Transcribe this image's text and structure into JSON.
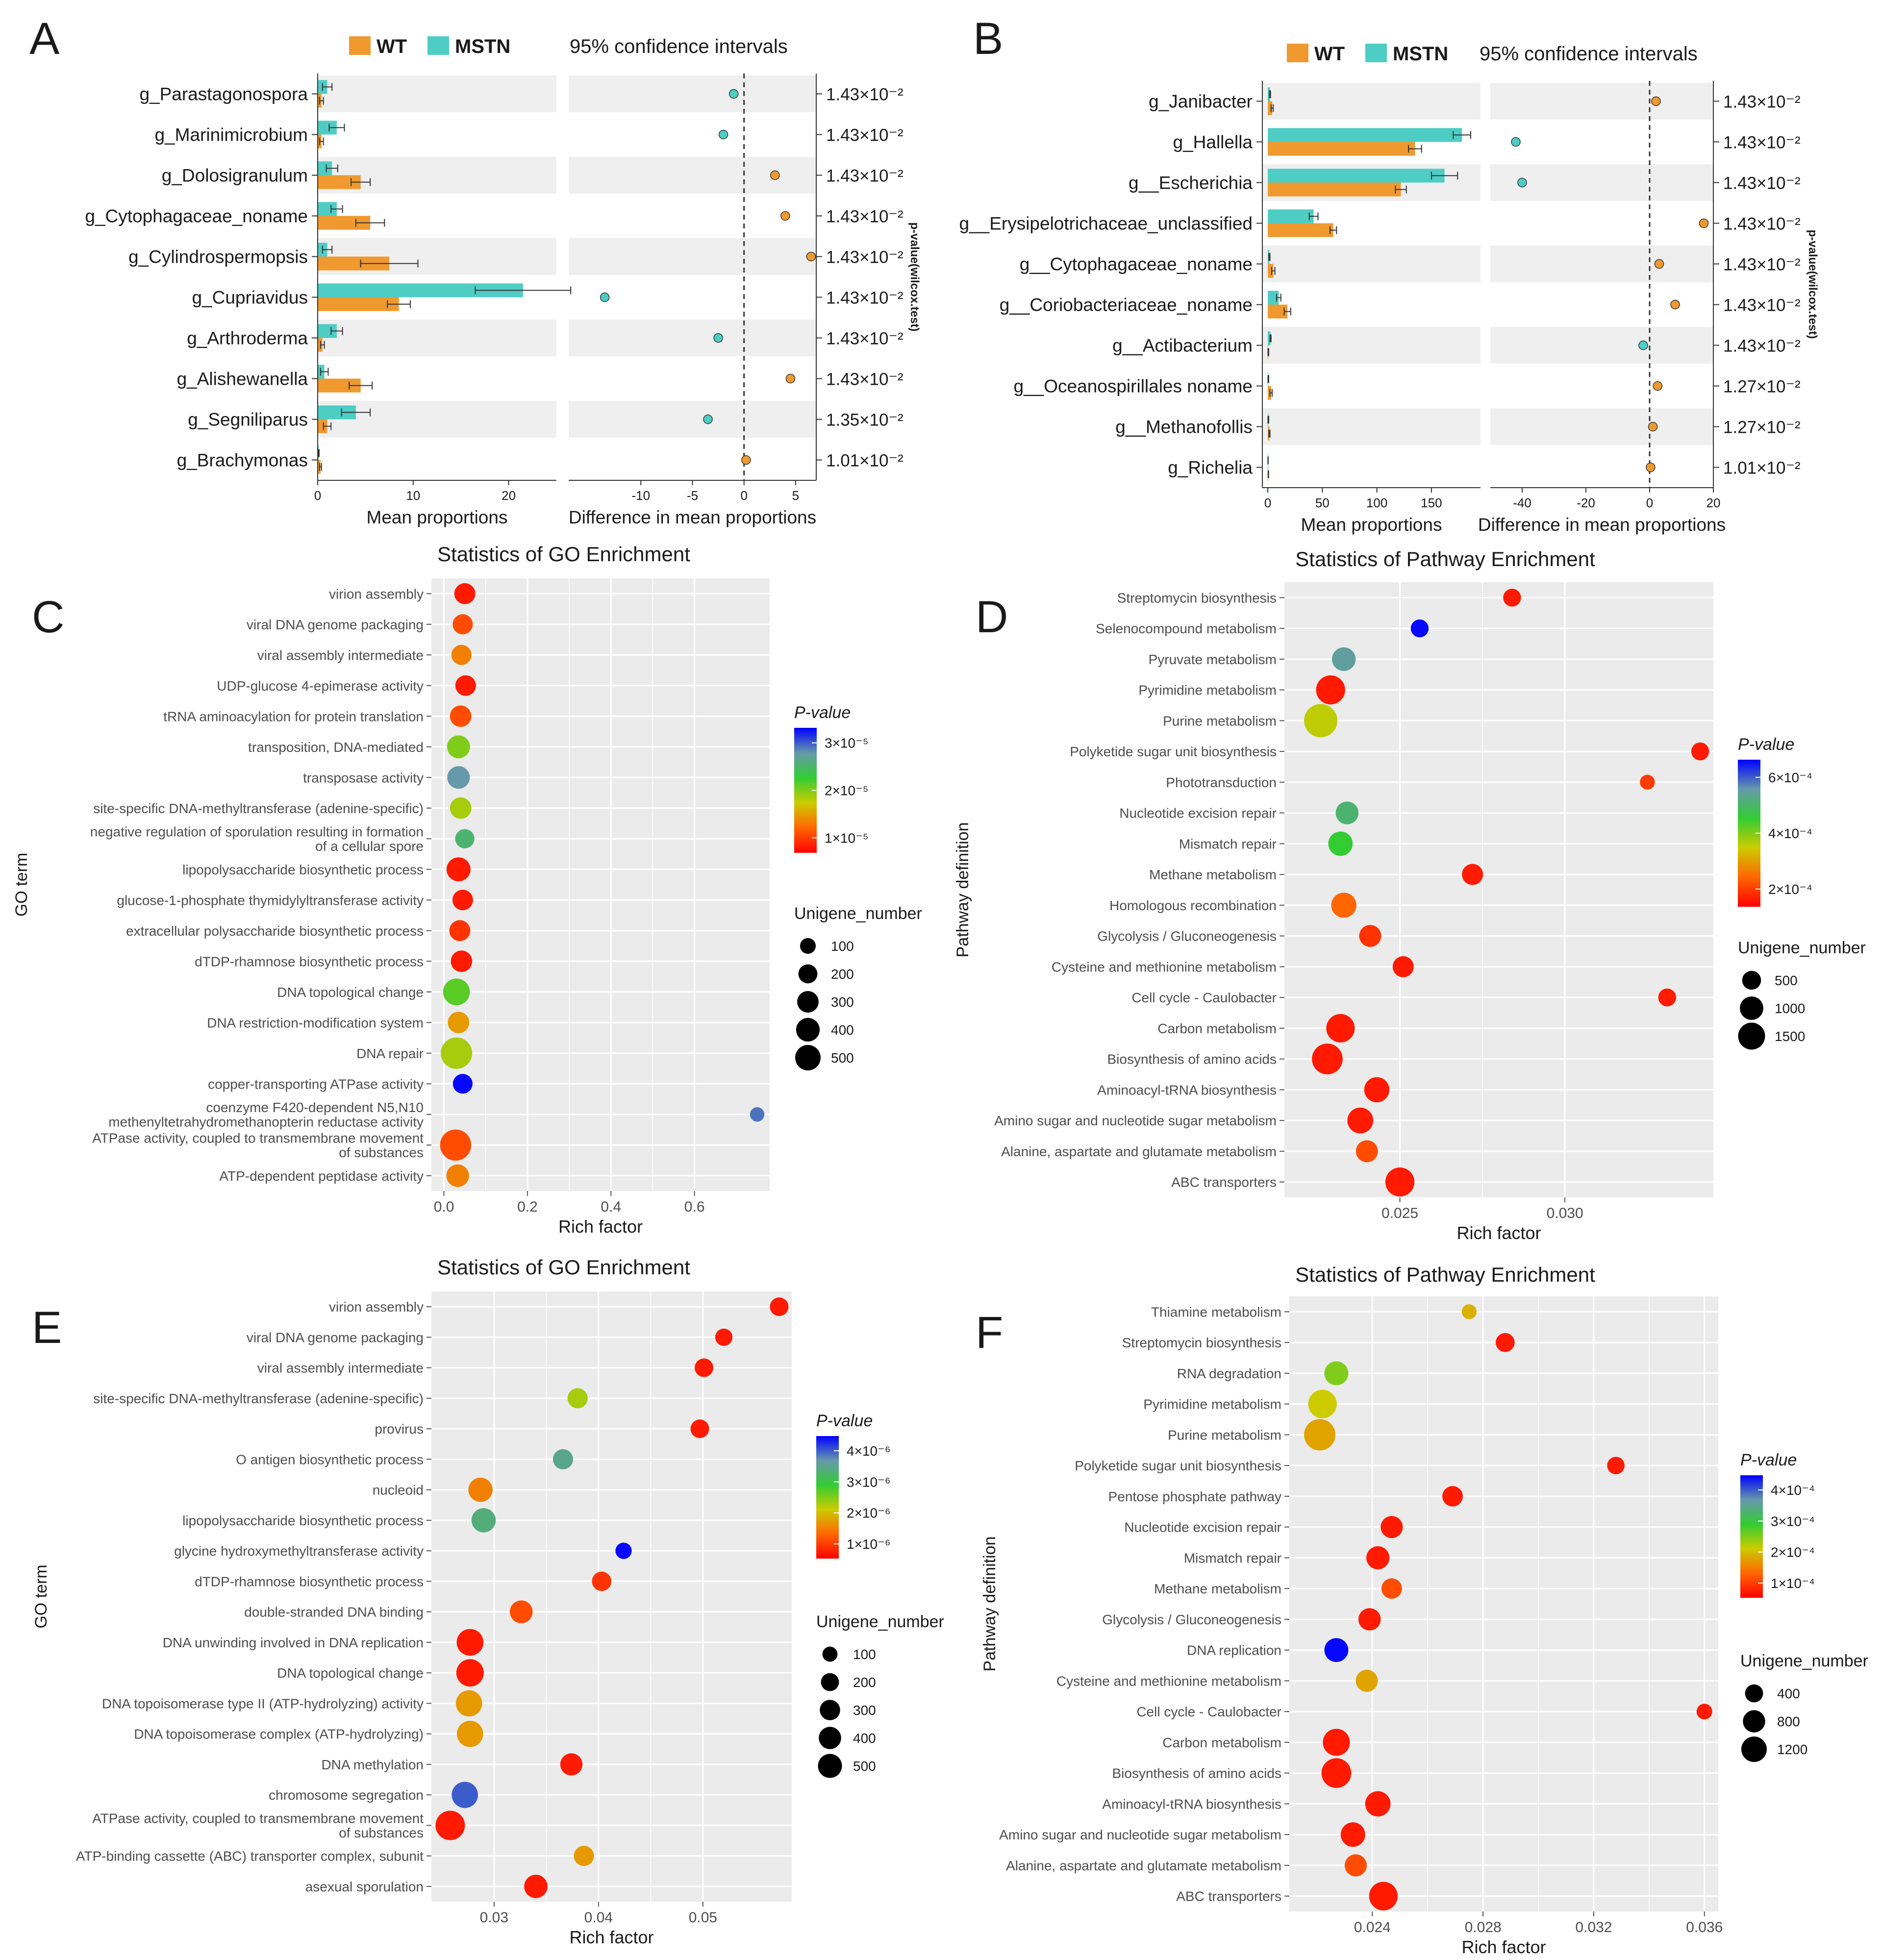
{
  "figure": {
    "panel_letters": [
      "A",
      "B",
      "C",
      "D",
      "E",
      "F"
    ]
  },
  "colors": {
    "wt": "#F0992E",
    "mstn": "#4ECDC4",
    "panel_bg": "#EBEBEB",
    "stripe": "#EFEFEF",
    "grid": "#FFFFFF",
    "text": "#1A1A1A",
    "axis_text": "#4D4D4D",
    "pvalue_scale": [
      "#FF0000",
      "#FF6600",
      "#CCCC00",
      "#33CC33",
      "#6699AA",
      "#5555DD",
      "#0000FF"
    ]
  },
  "chart_data": [
    {
      "id": "A",
      "type": "bar",
      "legend": [
        "WT",
        "MSTN"
      ],
      "ci_label": "95% confidence intervals",
      "categories": [
        "g_Parastagonospora",
        "g_Marinimicrobium",
        "g_Dolosigranulum",
        "g_Cytophagaceae_noname",
        "g_Cylindrospermopsis",
        "g_Cupriavidus",
        "g_Arthroderma",
        "g_Alishewanella",
        "g_Segniliparus",
        "g_Brachymonas"
      ],
      "series": [
        {
          "name": "MSTN",
          "values": [
            1.0,
            2.0,
            1.5,
            2.0,
            1.0,
            21.5,
            2.0,
            0.7,
            4.0,
            0.1
          ],
          "err": [
            0.5,
            0.8,
            0.6,
            0.6,
            0.5,
            5.0,
            0.6,
            0.4,
            1.5,
            0.05
          ]
        },
        {
          "name": "WT",
          "values": [
            0.4,
            0.4,
            4.5,
            5.5,
            7.5,
            8.5,
            0.5,
            4.5,
            1.0,
            0.3
          ],
          "err": [
            0.2,
            0.2,
            1.0,
            1.5,
            3.0,
            1.2,
            0.2,
            1.2,
            0.4,
            0.1
          ]
        }
      ],
      "diff": [
        -1.0,
        -2.0,
        3.0,
        4.0,
        6.5,
        -13.5,
        -2.5,
        4.5,
        -3.5,
        0.2
      ],
      "p_values": [
        "1.43×10⁻²",
        "1.43×10⁻²",
        "1.43×10⁻²",
        "1.43×10⁻²",
        "1.43×10⁻²",
        "1.43×10⁻²",
        "1.43×10⁻²",
        "1.43×10⁻²",
        "1.35×10⁻²",
        "1.01×10⁻²"
      ],
      "xlim_mean": [
        0,
        25
      ],
      "xticks_mean": [
        "0",
        "10",
        "20"
      ],
      "xlim_diff": [
        -17,
        7
      ],
      "xticks_diff": [
        "-10",
        "-5",
        "0",
        "5"
      ],
      "xlabel_mean": "Mean proportions",
      "xlabel_diff": "Difference in mean proportions",
      "pvalue_axis_label": "p-value(wilcox.test)"
    },
    {
      "id": "B",
      "type": "bar",
      "legend": [
        "WT",
        "MSTN"
      ],
      "ci_label": "95% confidence intervals",
      "categories": [
        "g_Janibacter",
        "g_Hallella",
        "g__Escherichia",
        "g__Erysipelotrichaceae_unclassified",
        "g__Cytophagaceae_noname",
        "g__Coriobacteriaceae_noname",
        "g__Actibacterium",
        "g__Oceanospirillales noname",
        "g__Methanofollis",
        "g_Richelia"
      ],
      "series": [
        {
          "name": "MSTN",
          "values": [
            2.0,
            178.0,
            162.0,
            42.0,
            1.5,
            10.0,
            2.5,
            0.5,
            0.5,
            0.2
          ],
          "err": [
            0.5,
            8.0,
            12.0,
            4.0,
            0.5,
            2.0,
            0.5,
            0.3,
            0.3,
            0.1
          ]
        },
        {
          "name": "WT",
          "values": [
            4.0,
            135.0,
            122.0,
            60.0,
            5.0,
            18.0,
            0.5,
            3.0,
            1.5,
            0.5
          ],
          "err": [
            1.0,
            6.0,
            5.0,
            3.0,
            1.5,
            3.0,
            0.3,
            1.0,
            0.5,
            0.2
          ]
        }
      ],
      "diff": [
        2.0,
        -42.0,
        -40.0,
        17.0,
        3.0,
        8.0,
        -2.0,
        2.5,
        1.0,
        0.3
      ],
      "p_values": [
        "1.43×10⁻²",
        "1.43×10⁻²",
        "1.43×10⁻²",
        "1.43×10⁻²",
        "1.43×10⁻²",
        "1.43×10⁻²",
        "1.43×10⁻²",
        "1.27×10⁻²",
        "1.27×10⁻²",
        "1.01×10⁻²"
      ],
      "xlim_mean": [
        -5,
        195
      ],
      "xticks_mean": [
        "0",
        "50",
        "100",
        "150"
      ],
      "xlim_diff": [
        -50,
        20
      ],
      "xticks_diff": [
        "-40",
        "-20",
        "0",
        "20"
      ],
      "xlabel_mean": "Mean proportions",
      "xlabel_diff": "Difference in mean proportions",
      "pvalue_axis_label": "p-value(wilcox.test)"
    },
    {
      "id": "C",
      "type": "scatter",
      "title": "Statistics of GO Enrichment",
      "xlabel": "Rich factor",
      "ylabel": "GO term",
      "xlim": [
        -0.03,
        0.78
      ],
      "xticks": [
        "0.0",
        "0.2",
        "0.4",
        "0.6"
      ],
      "xtick_values": [
        0.0,
        0.2,
        0.4,
        0.6
      ],
      "categories": [
        "virion assembly",
        "viral DNA genome packaging",
        "viral assembly intermediate",
        "UDP-glucose 4-epimerase activity",
        "tRNA aminoacylation for protein translation",
        "transposition, DNA-mediated",
        "transposase activity",
        "site-specific DNA-methyltransferase (adenine-specific)",
        "negative regulation of sporulation resulting in formation\nof a cellular spore",
        "lipopolysaccharide biosynthetic process",
        "glucose-1-phosphate thymidylyltransferase activity",
        "extracellular polysaccharide biosynthetic process",
        "dTDP-rhamnose biosynthetic process",
        "DNA topological change",
        "DNA restriction-modification system",
        "DNA repair",
        "copper-transporting ATPase activity",
        "coenzyme F420-dependent N5,N10\nmethenyltetrahydromethanopterin reductase activity",
        "ATPase activity, coupled to transmembrane movement\nof substances",
        "ATP-dependent peptidase activity"
      ],
      "x": [
        0.05,
        0.045,
        0.042,
        0.052,
        0.04,
        0.035,
        0.035,
        0.04,
        0.05,
        0.035,
        0.045,
        0.038,
        0.042,
        0.03,
        0.035,
        0.03,
        0.045,
        0.75,
        0.028,
        0.033
      ],
      "size": [
        160,
        140,
        140,
        150,
        170,
        210,
        200,
        170,
        120,
        240,
        150,
        160,
        170,
        330,
        170,
        510,
        130,
        40,
        500,
        200
      ],
      "p_rank": [
        0.05,
        0.15,
        0.25,
        0.05,
        0.15,
        0.5,
        0.8,
        0.45,
        0.7,
        0.05,
        0.05,
        0.1,
        0.05,
        0.55,
        0.3,
        0.45,
        0.99,
        0.85,
        0.15,
        0.25
      ],
      "legend_pvalue": {
        "title": "P-value",
        "labels": [
          "3×10⁻⁵",
          "2×10⁻⁵",
          "1×10⁻⁵"
        ]
      },
      "legend_size": {
        "title": "Unigene_number",
        "labels": [
          "100",
          "200",
          "300",
          "400",
          "500"
        ]
      }
    },
    {
      "id": "D",
      "type": "scatter",
      "title": "Statistics of Pathway Enrichment",
      "xlabel": "Rich factor",
      "ylabel": "Pathway definition",
      "xlim": [
        0.0215,
        0.0345
      ],
      "xticks": [
        "0.025",
        "0.030"
      ],
      "xtick_values": [
        0.025,
        0.03
      ],
      "categories": [
        "Streptomycin biosynthesis",
        "Selenocompound metabolism",
        "Pyruvate metabolism",
        "Pyrimidine metabolism",
        "Purine metabolism",
        "Polyketide sugar unit biosynthesis",
        "Phototransduction",
        "Nucleotide excision repair",
        "Mismatch repair",
        "Methane metabolism",
        "Homologous recombination",
        "Glycolysis / Gluconeogenesis",
        "Cysteine and methionine metabolism",
        "Cell cycle - Caulobacter",
        "Carbon metabolism",
        "Biosynthesis of amino acids",
        "Aminoacyl-tRNA biosynthesis",
        "Amino sugar and nucleotide sugar metabolism",
        "Alanine, aspartate and glutamate metabolism",
        "ABC transporters"
      ],
      "x": [
        0.0284,
        0.0256,
        0.0233,
        0.0229,
        0.0226,
        0.0341,
        0.0325,
        0.0234,
        0.0232,
        0.0272,
        0.0233,
        0.0241,
        0.0251,
        0.0331,
        0.0232,
        0.0228,
        0.0243,
        0.0238,
        0.024,
        0.025
      ],
      "size": [
        200,
        200,
        500,
        900,
        1300,
        200,
        100,
        450,
        550,
        350,
        600,
        400,
        350,
        200,
        850,
        1050,
        600,
        650,
        400,
        900
      ],
      "p_rank": [
        0.05,
        0.99,
        0.78,
        0.05,
        0.42,
        0.05,
        0.12,
        0.7,
        0.6,
        0.05,
        0.2,
        0.1,
        0.05,
        0.05,
        0.05,
        0.05,
        0.05,
        0.05,
        0.15,
        0.05
      ],
      "legend_pvalue": {
        "title": "P-value",
        "labels": [
          "6×10⁻⁴",
          "4×10⁻⁴",
          "2×10⁻⁴"
        ]
      },
      "legend_size": {
        "title": "Unigene_number",
        "labels": [
          "500",
          "1000",
          "1500"
        ]
      }
    },
    {
      "id": "E",
      "type": "scatter",
      "title": "Statistics of GO Enrichment",
      "xlabel": "Rich factor",
      "ylabel": "GO term",
      "xlim": [
        0.024,
        0.0585
      ],
      "xticks": [
        "0.03",
        "0.04",
        "0.05"
      ],
      "xtick_values": [
        0.03,
        0.04,
        0.05
      ],
      "categories": [
        "virion assembly",
        "viral DNA genome packaging",
        "viral assembly intermediate",
        "site-specific DNA-methyltransferase (adenine-specific)",
        "provirus",
        "O antigen biosynthetic process",
        "nucleoid",
        "lipopolysaccharide biosynthetic process",
        "glycine hydroxymethyltransferase activity",
        "dTDP-rhamnose biosynthetic process",
        "double-stranded DNA binding",
        "DNA unwinding involved in DNA replication",
        "DNA topological change",
        "DNA topoisomerase type II (ATP-hydrolyzing) activity",
        "DNA topoisomerase complex (ATP-hydrolyzing)",
        "DNA methylation",
        "chromosome segregation",
        "ATPase activity, coupled to transmembrane movement\nof substances",
        "ATP-binding cassette (ABC) transporter complex, subunit",
        "asexual sporulation"
      ],
      "x": [
        0.0573,
        0.052,
        0.0501,
        0.038,
        0.0497,
        0.0366,
        0.0287,
        0.029,
        0.0424,
        0.0403,
        0.0326,
        0.0277,
        0.0277,
        0.0276,
        0.0277,
        0.0374,
        0.0272,
        0.0258,
        0.0386,
        0.034
      ],
      "size": [
        130,
        100,
        130,
        170,
        130,
        170,
        300,
        300,
        80,
        150,
        250,
        400,
        430,
        380,
        380,
        230,
        380,
        520,
        170,
        270
      ],
      "p_rank": [
        0.05,
        0.05,
        0.05,
        0.45,
        0.05,
        0.75,
        0.25,
        0.72,
        0.99,
        0.1,
        0.15,
        0.05,
        0.05,
        0.3,
        0.3,
        0.05,
        0.88,
        0.05,
        0.3,
        0.05
      ],
      "legend_pvalue": {
        "title": "P-value",
        "labels": [
          "4×10⁻⁶",
          "3×10⁻⁶",
          "2×10⁻⁶",
          "1×10⁻⁶"
        ]
      },
      "legend_size": {
        "title": "Unigene_number",
        "labels": [
          "100",
          "200",
          "300",
          "400",
          "500"
        ]
      }
    },
    {
      "id": "F",
      "type": "scatter",
      "title": "Statistics of Pathway Enrichment",
      "xlabel": "Rich factor",
      "ylabel": "Pathway definition",
      "xlim": [
        0.021,
        0.0365
      ],
      "xticks": [
        "0.024",
        "0.028",
        "0.032",
        "0.036"
      ],
      "xtick_values": [
        0.024,
        0.028,
        0.032,
        0.036
      ],
      "categories": [
        "Thiamine metabolism",
        "Streptomycin biosynthesis",
        "RNA degradation",
        "Pyrimidine metabolism",
        "Purine metabolism",
        "Polyketide sugar unit biosynthesis",
        "Pentose phosphate pathway",
        "Nucleotide excision repair",
        "Mismatch repair",
        "Methane metabolism",
        "Glycolysis / Gluconeogenesis",
        "DNA replication",
        "Cysteine and methionine metabolism",
        "Cell cycle - Caulobacter",
        "Carbon metabolism",
        "Biosynthesis of amino acids",
        "Aminoacyl-tRNA biosynthesis",
        "Amino sugar and nucleotide sugar metabolism",
        "Alanine, aspartate and glutamate metabolism",
        "ABC transporters"
      ],
      "x": [
        0.0275,
        0.0288,
        0.0227,
        0.0222,
        0.0221,
        0.0328,
        0.0269,
        0.0247,
        0.0242,
        0.0247,
        0.0239,
        0.0227,
        0.0238,
        0.036,
        0.0227,
        0.0227,
        0.0242,
        0.0233,
        0.0234,
        0.0244
      ],
      "size": [
        80,
        200,
        420,
        700,
        900,
        150,
        260,
        330,
        380,
        260,
        340,
        420,
        330,
        100,
        600,
        780,
        500,
        450,
        330,
        700
      ],
      "p_rank": [
        0.35,
        0.05,
        0.5,
        0.4,
        0.32,
        0.05,
        0.05,
        0.05,
        0.05,
        0.15,
        0.05,
        0.99,
        0.32,
        0.05,
        0.05,
        0.05,
        0.05,
        0.05,
        0.15,
        0.05
      ],
      "legend_pvalue": {
        "title": "P-value",
        "labels": [
          "4×10⁻⁴",
          "3×10⁻⁴",
          "2×10⁻⁴",
          "1×10⁻⁴"
        ]
      },
      "legend_size": {
        "title": "Unigene_number",
        "labels": [
          "400",
          "800",
          "1200"
        ]
      }
    }
  ]
}
